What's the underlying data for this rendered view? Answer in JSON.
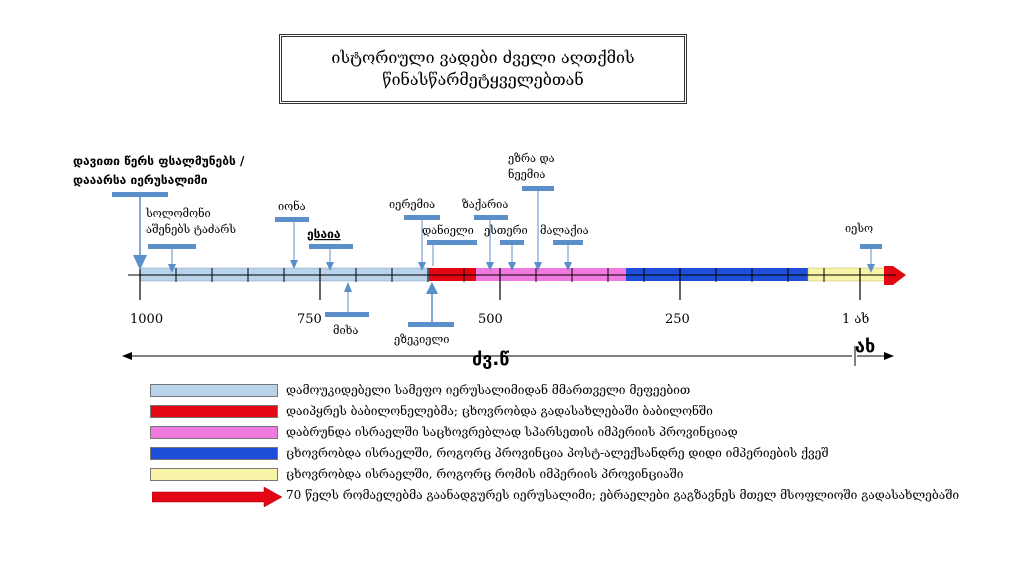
{
  "title": {
    "line1": "ისტორიული ვადები ძველი აღთქმის",
    "line2": "წინასწარმეტყველებთან"
  },
  "axis": {
    "ticks": [
      "1000",
      "750",
      "500",
      "250",
      "1 ახ"
    ],
    "era_before": "ძვ.წ",
    "era_after": "ახ"
  },
  "events": {
    "david": {
      "line1": "დავითი წერს ფსალმუნებს /",
      "line2": "დააარსა იერუსალიმი"
    },
    "solomon": {
      "line1": "სოლომონი",
      "line2": "აშენებს ტაძარს"
    },
    "jonah": "იონა",
    "isaiah": "ესაია",
    "micah": "მიხა",
    "jeremiah": "იერემია",
    "ezekiel": "ეზეკიელი",
    "daniel": "დანიელი",
    "zechariah": "ზაქარია",
    "esther": "ესთერი",
    "ezra": {
      "line1": "ეზრა და",
      "line2": "ნეემია"
    },
    "malachi": "მალაქია",
    "jesus": "იესო"
  },
  "legend": [
    {
      "color": "#b9d3ea",
      "text": "დამოუკიდებელი სამეფო იერუსალიმიდან მმართველი მეფეებით"
    },
    {
      "color": "#e30613",
      "text": "დაიპყრეს ბაბილონელებმა; ცხოვრობდა გადასახლებაში ბაბილონში"
    },
    {
      "color": "#f07ae0",
      "text": "დაბრუნდა ისრაელში საცხოვრებლად სპარსეთის იმპერიის პროვინციად"
    },
    {
      "color": "#1f4fd8",
      "text": "ცხოვრობდა ისრაელში, როგორც პროვინცია პოსტ-ალექსანდრე დიდი იმპერიების ქვეშ"
    },
    {
      "color": "#f8f4a8",
      "text": "ცხოვრობდა ისრაელში, როგორც რომის იმპერიის პროვინციაში"
    },
    {
      "color": "#e30613",
      "text": "70 წელს რომაელებმა გაანადგურეს იერუსალიმი; ებრაელები გაგზავნეს მთელ მსოფლიოში გადასახლებაში"
    }
  ]
}
